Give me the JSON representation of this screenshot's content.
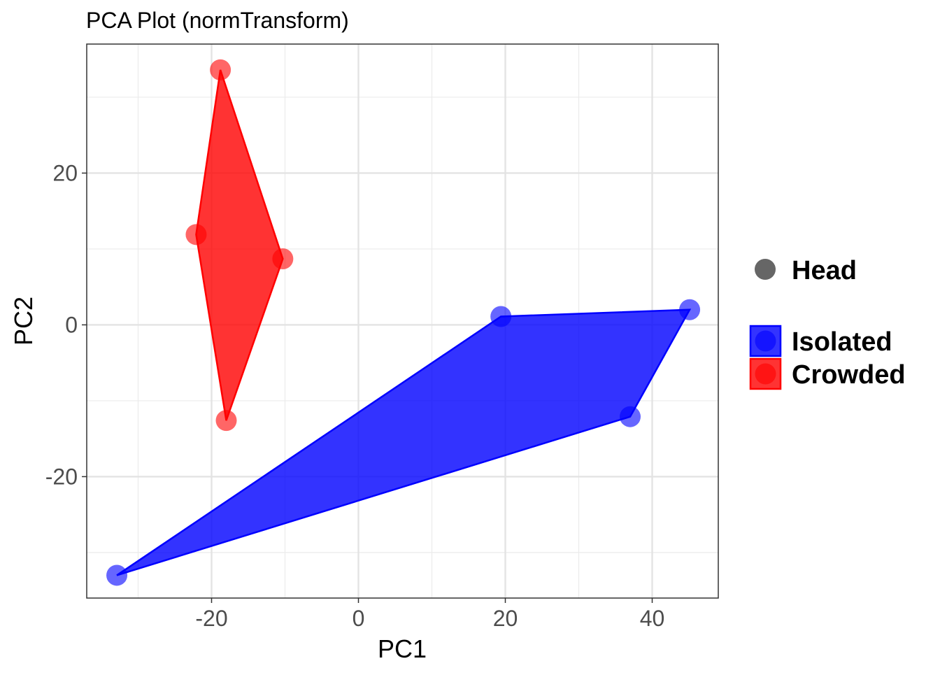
{
  "chart_data": {
    "type": "scatter",
    "title": "PCA Plot (normTransform)",
    "xlabel": "PC1",
    "ylabel": "PC2",
    "xlim": [
      -37,
      49
    ],
    "ylim": [
      -36,
      37
    ],
    "x_ticks": [
      -20,
      0,
      20,
      40
    ],
    "y_ticks": [
      -20,
      0,
      20
    ],
    "x_tick_labels": [
      "-20",
      "0",
      "20",
      "40"
    ],
    "y_tick_labels": [
      "-20",
      "0",
      "20"
    ],
    "grid": true,
    "legend_position": "right",
    "shape_legend": [
      {
        "label": "Head",
        "color": "#666666"
      }
    ],
    "series": [
      {
        "name": "Isolated",
        "color": "#0000ff",
        "points": [
          {
            "x": 19.4,
            "y": 1.1
          },
          {
            "x": 45.1,
            "y": 2.0
          },
          {
            "x": 37.0,
            "y": -12.1
          },
          {
            "x": -32.9,
            "y": -33.0
          }
        ],
        "hull_order": [
          0,
          1,
          2,
          3
        ]
      },
      {
        "name": "Crowded",
        "color": "#ff0000",
        "points": [
          {
            "x": -18.8,
            "y": 33.6
          },
          {
            "x": -22.1,
            "y": 11.9
          },
          {
            "x": -10.3,
            "y": 8.7
          },
          {
            "x": -18.0,
            "y": -12.6
          }
        ],
        "hull_order": [
          0,
          2,
          3,
          1
        ]
      }
    ]
  }
}
